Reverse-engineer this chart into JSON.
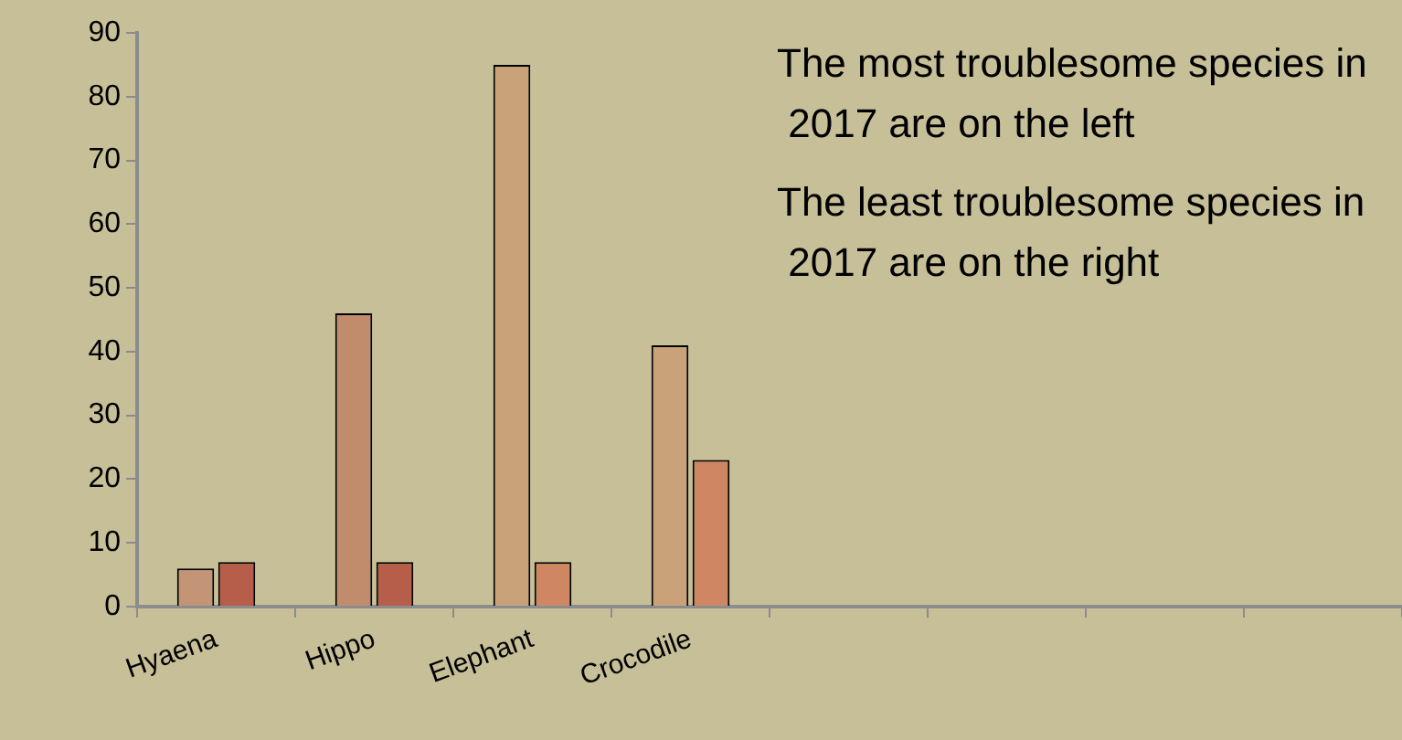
{
  "chart_data": {
    "type": "bar",
    "categories": [
      "Hyaena",
      "Hippo",
      "Elephant",
      "Crocodile",
      null,
      null,
      null,
      null
    ],
    "series": [
      {
        "colors": [
          "#c49476",
          "#c08c6c",
          "#c9a27a",
          "#c9a27a",
          null,
          null,
          null,
          null
        ],
        "values": [
          6,
          46,
          85,
          41,
          null,
          null,
          null,
          null
        ]
      },
      {
        "colors": [
          "#b65e4a",
          "#b65e4a",
          "#cf8663",
          "#cf8663",
          null,
          null,
          null,
          null
        ],
        "values": [
          7,
          7,
          7,
          23,
          null,
          null,
          null,
          null
        ]
      }
    ],
    "ylim": [
      0,
      90
    ],
    "yticks": [
      0,
      10,
      20,
      30,
      40,
      50,
      60,
      70,
      80,
      90
    ],
    "grid": false,
    "legend": false,
    "annotations": [
      "The most troublesome species in 2017 are on the left",
      "The least troublesome species in 2017 are on the right"
    ]
  }
}
